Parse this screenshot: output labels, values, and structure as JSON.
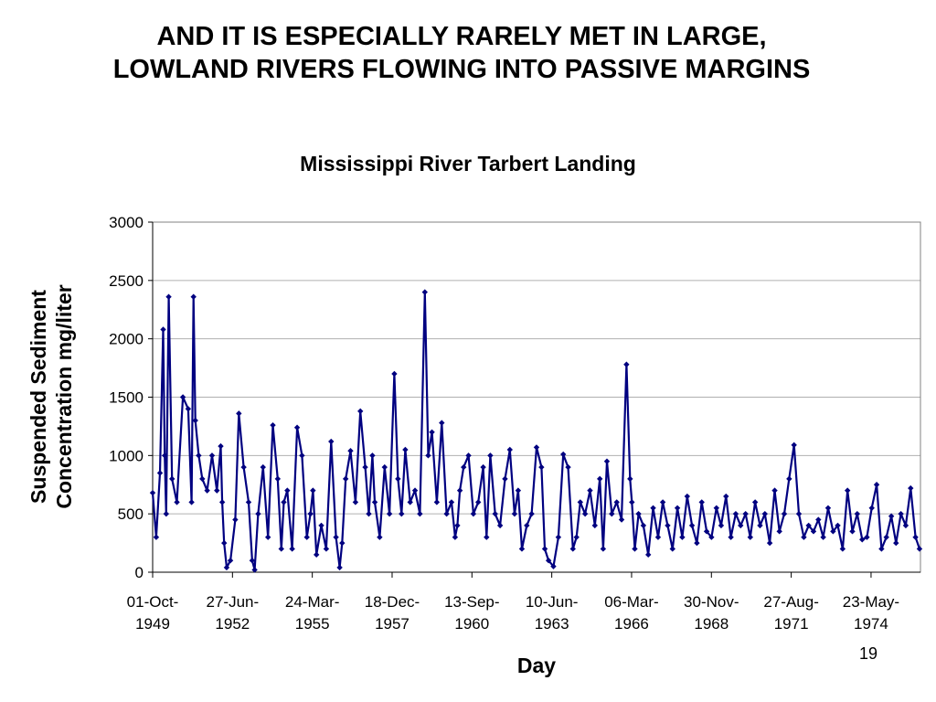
{
  "slide": {
    "title_line1": "AND IT IS ESPECIALLY RARELY MET IN LARGE,",
    "title_line2": "LOWLAND RIVERS FLOWING INTO PASSIVE MARGINS",
    "page_number": "19"
  },
  "chart_data": {
    "type": "line",
    "title": "Mississippi River Tarbert Landing",
    "xlabel": "Day",
    "ylabel_line1": "Suspended Sediment",
    "ylabel_line2": "Concentration mg/liter",
    "ylim": [
      0,
      3000
    ],
    "yticks": [
      "0",
      "500",
      "1000",
      "1500",
      "2000",
      "2500",
      "3000"
    ],
    "xlim": [
      "1949-10-01",
      "1976-02-01"
    ],
    "xticks": [
      {
        "date": "1949-10-01",
        "label1": "01-Oct-",
        "label2": "1949"
      },
      {
        "date": "1952-06-27",
        "label1": "27-Jun-",
        "label2": "1952"
      },
      {
        "date": "1955-03-24",
        "label1": "24-Mar-",
        "label2": "1955"
      },
      {
        "date": "1957-12-18",
        "label1": "18-Dec-",
        "label2": "1957"
      },
      {
        "date": "1960-09-13",
        "label1": "13-Sep-",
        "label2": "1960"
      },
      {
        "date": "1963-06-10",
        "label1": "10-Jun-",
        "label2": "1963"
      },
      {
        "date": "1966-03-06",
        "label1": "06-Mar-",
        "label2": "1966"
      },
      {
        "date": "1968-11-30",
        "label1": "30-Nov-",
        "label2": "1968"
      },
      {
        "date": "1971-08-27",
        "label1": "27-Aug-",
        "label2": "1971"
      },
      {
        "date": "1974-05-23",
        "label1": "23-May-",
        "label2": "1974"
      }
    ],
    "grid_y": true,
    "legend": "none",
    "series": [
      {
        "color": "#000080",
        "marker": "diamond",
        "x": [
          "1949-10-01",
          "1949-11-15",
          "1950-01-01",
          "1950-02-10",
          "1950-03-01",
          "1950-03-20",
          "1950-04-20",
          "1950-06-01",
          "1950-08-01",
          "1950-10-15",
          "1950-12-20",
          "1951-02-01",
          "1951-02-25",
          "1951-03-20",
          "1951-05-01",
          "1951-06-15",
          "1951-08-15",
          "1951-10-15",
          "1951-12-15",
          "1952-02-01",
          "1952-02-20",
          "1952-03-15",
          "1952-04-15",
          "1952-06-01",
          "1952-08-01",
          "1952-09-15",
          "1952-11-15",
          "1953-01-15",
          "1953-03-01",
          "1953-04-01",
          "1953-05-15",
          "1953-07-15",
          "1953-09-15",
          "1953-11-15",
          "1954-01-15",
          "1954-03-01",
          "1954-04-01",
          "1954-05-15",
          "1954-07-15",
          "1954-09-15",
          "1954-11-15",
          "1955-01-15",
          "1955-03-01",
          "1955-04-01",
          "1955-05-15",
          "1955-07-15",
          "1955-09-15",
          "1955-11-15",
          "1956-01-15",
          "1956-03-01",
          "1956-04-01",
          "1956-05-15",
          "1956-07-15",
          "1956-09-15",
          "1956-11-15",
          "1957-01-15",
          "1957-03-01",
          "1957-04-15",
          "1957-05-15",
          "1957-07-15",
          "1957-09-15",
          "1957-11-15",
          "1958-01-15",
          "1958-03-01",
          "1958-04-15",
          "1958-06-01",
          "1958-08-01",
          "1958-10-01",
          "1958-12-01",
          "1959-02-01",
          "1959-03-15",
          "1959-05-01",
          "1959-07-01",
          "1959-09-01",
          "1959-11-01",
          "1960-01-01",
          "1960-02-15",
          "1960-03-15",
          "1960-04-15",
          "1960-06-01",
          "1960-08-01",
          "1960-10-01",
          "1960-12-01",
          "1961-02-01",
          "1961-03-15",
          "1961-05-01",
          "1961-07-01",
          "1961-09-01",
          "1961-11-01",
          "1962-01-01",
          "1962-03-01",
          "1962-04-15",
          "1962-06-01",
          "1962-08-01",
          "1962-10-01",
          "1962-12-01",
          "1963-02-01",
          "1963-03-15",
          "1963-05-01",
          "1963-07-01",
          "1963-09-01",
          "1963-11-01",
          "1964-01-01",
          "1964-03-01",
          "1964-04-15",
          "1964-06-01",
          "1964-08-01",
          "1964-10-01",
          "1964-12-01",
          "1965-02-01",
          "1965-03-15",
          "1965-05-01",
          "1965-07-01",
          "1965-09-01",
          "1965-11-01",
          "1966-01-01",
          "1966-02-15",
          "1966-03-10",
          "1966-04-15",
          "1966-06-01",
          "1966-08-01",
          "1966-10-01",
          "1966-12-01",
          "1967-02-01",
          "1967-04-01",
          "1967-06-01",
          "1967-08-01",
          "1967-10-01",
          "1967-12-01",
          "1968-02-01",
          "1968-04-01",
          "1968-06-01",
          "1968-08-01",
          "1968-10-01",
          "1968-12-01",
          "1969-02-01",
          "1969-04-01",
          "1969-06-01",
          "1969-08-01",
          "1969-10-01",
          "1969-12-01",
          "1970-02-01",
          "1970-04-01",
          "1970-06-01",
          "1970-08-01",
          "1970-10-01",
          "1970-12-01",
          "1971-02-01",
          "1971-04-01",
          "1971-06-01",
          "1971-08-01",
          "1971-10-01",
          "1971-12-01",
          "1972-02-01",
          "1972-04-01",
          "1972-06-01",
          "1972-08-01",
          "1972-10-01",
          "1972-12-01",
          "1973-02-01",
          "1973-04-01",
          "1973-06-01",
          "1973-08-01",
          "1973-10-01",
          "1973-12-01",
          "1974-02-01",
          "1974-04-01",
          "1974-06-01",
          "1974-08-01",
          "1974-10-01",
          "1974-12-01",
          "1975-02-01",
          "1975-04-01",
          "1975-06-01",
          "1975-08-01",
          "1975-10-01",
          "1975-12-01",
          "1976-01-20"
        ],
        "y": [
          680,
          300,
          850,
          2080,
          1000,
          500,
          2360,
          800,
          600,
          1500,
          1400,
          600,
          2360,
          1300,
          1000,
          800,
          700,
          1000,
          700,
          1080,
          600,
          250,
          40,
          100,
          450,
          1360,
          900,
          600,
          100,
          20,
          500,
          900,
          300,
          1260,
          800,
          200,
          600,
          700,
          200,
          1240,
          1000,
          300,
          500,
          700,
          150,
          400,
          200,
          1120,
          300,
          40,
          250,
          800,
          1040,
          600,
          1380,
          900,
          500,
          1000,
          600,
          300,
          900,
          500,
          1700,
          800,
          500,
          1050,
          600,
          700,
          500,
          2400,
          1000,
          1200,
          600,
          1280,
          500,
          600,
          300,
          400,
          700,
          900,
          1000,
          500,
          600,
          900,
          300,
          1000,
          500,
          400,
          800,
          1050,
          500,
          700,
          200,
          400,
          500,
          1070,
          900,
          200,
          100,
          50,
          300,
          1010,
          900,
          200,
          300,
          600,
          500,
          700,
          400,
          800,
          200,
          950,
          500,
          600,
          450,
          1780,
          800,
          600,
          200,
          500,
          400,
          150,
          550,
          300,
          600,
          400,
          200,
          550,
          300,
          650,
          400,
          250,
          600,
          350,
          300,
          550,
          400,
          650,
          300,
          500,
          400,
          500,
          300,
          600,
          400,
          500,
          250,
          700,
          350,
          500,
          800,
          1090,
          500,
          300,
          400,
          350,
          450,
          300,
          550,
          350,
          400,
          200,
          700,
          350,
          500,
          280,
          300,
          550,
          750,
          200,
          300,
          480,
          250,
          500,
          400,
          720,
          300,
          200
        ]
      }
    ]
  }
}
